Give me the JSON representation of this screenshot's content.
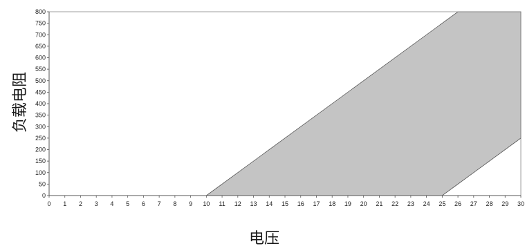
{
  "chart_data": {
    "type": "area",
    "title": "",
    "xlabel": "电压",
    "ylabel": "负载电阻",
    "xlim": [
      0,
      30
    ],
    "ylim": [
      0,
      800
    ],
    "x_ticks": [
      0,
      1,
      2,
      3,
      4,
      5,
      6,
      7,
      8,
      9,
      10,
      11,
      12,
      13,
      14,
      15,
      16,
      17,
      18,
      19,
      20,
      21,
      22,
      23,
      24,
      25,
      26,
      27,
      28,
      29,
      30
    ],
    "y_ticks": [
      0,
      50,
      100,
      150,
      200,
      250,
      300,
      350,
      400,
      450,
      500,
      550,
      600,
      650,
      700,
      750,
      800
    ],
    "grid": false,
    "legend": "none",
    "series": [
      {
        "upper_boundary": [
          [
            10,
            0
          ],
          [
            26,
            800
          ],
          [
            30,
            800
          ]
        ],
        "lower_boundary": [
          [
            10,
            0
          ],
          [
            25,
            0
          ],
          [
            26,
            50
          ],
          [
            30,
            250
          ]
        ],
        "color": "#c4c4c4"
      }
    ]
  }
}
